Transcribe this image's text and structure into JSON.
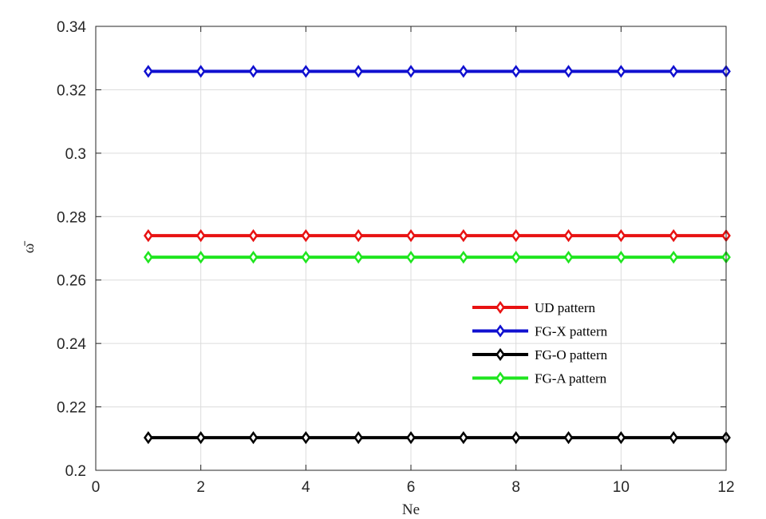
{
  "chart_data": {
    "type": "line",
    "title": "",
    "xlabel": "Ne",
    "ylabel": "ω̄",
    "xlim": [
      0,
      12
    ],
    "ylim": [
      0.2,
      0.34
    ],
    "xticks": [
      0,
      2,
      4,
      6,
      8,
      10,
      12
    ],
    "xtick_labels": [
      "0",
      "2",
      "4",
      "6",
      "8",
      "10",
      "12"
    ],
    "yticks": [
      0.2,
      0.22,
      0.24,
      0.26,
      0.28,
      0.3,
      0.32,
      0.34
    ],
    "ytick_labels": [
      "0.2",
      "0.22",
      "0.24",
      "0.26",
      "0.28",
      "0.3",
      "0.32",
      "0.34"
    ],
    "grid": true,
    "legend_position": "center-right",
    "x": [
      1,
      2,
      3,
      4,
      5,
      6,
      7,
      8,
      9,
      10,
      11,
      12
    ],
    "series": [
      {
        "name": "UD pattern",
        "color": "#e81212",
        "marker": "diamond",
        "values": [
          0.274,
          0.274,
          0.274,
          0.274,
          0.274,
          0.274,
          0.274,
          0.274,
          0.274,
          0.274,
          0.274,
          0.274
        ]
      },
      {
        "name": "FG-X pattern",
        "color": "#1010d0",
        "marker": "diamond",
        "values": [
          0.3258,
          0.3258,
          0.3258,
          0.3258,
          0.3258,
          0.3258,
          0.3258,
          0.3258,
          0.3258,
          0.3258,
          0.3258,
          0.3258
        ]
      },
      {
        "name": "FG-O pattern",
        "color": "#000000",
        "marker": "diamond",
        "values": [
          0.2103,
          0.2103,
          0.2103,
          0.2103,
          0.2103,
          0.2103,
          0.2103,
          0.2103,
          0.2103,
          0.2103,
          0.2103,
          0.2103
        ]
      },
      {
        "name": "FG-A pattern",
        "color": "#1fe51f",
        "marker": "diamond",
        "values": [
          0.2672,
          0.2672,
          0.2672,
          0.2672,
          0.2672,
          0.2672,
          0.2672,
          0.2672,
          0.2672,
          0.2672,
          0.2672,
          0.2672
        ]
      }
    ]
  }
}
